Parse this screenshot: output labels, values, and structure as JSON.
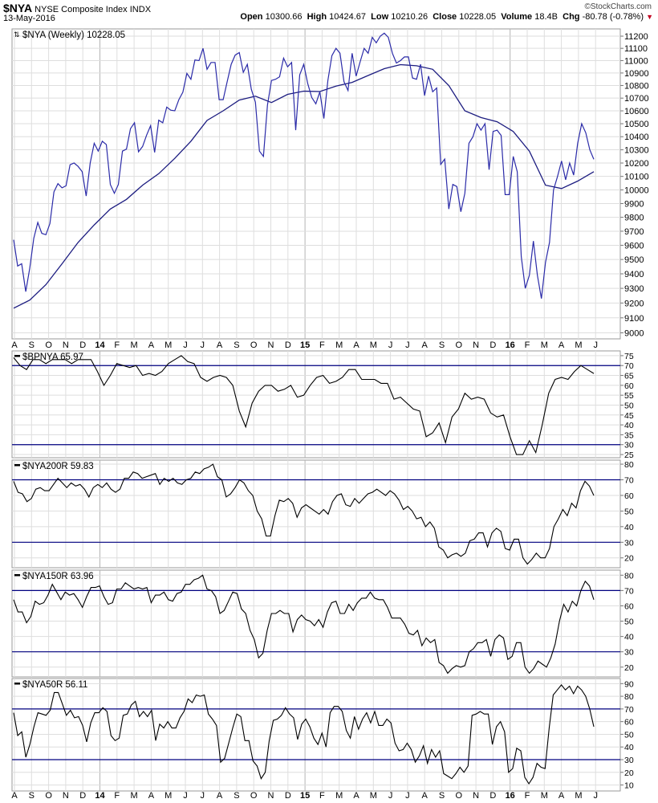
{
  "header": {
    "symbol": "$NYA",
    "name": "NYSE Composite Index",
    "type": "INDX",
    "copyright": "©StockCharts.com",
    "date": "13-May-2016",
    "quote": [
      {
        "label": "Open",
        "value": "10300.66"
      },
      {
        "label": "High",
        "value": "10424.67"
      },
      {
        "label": "Low",
        "value": "10210.26"
      },
      {
        "label": "Close",
        "value": "10228.05"
      },
      {
        "label": "Volume",
        "value": "18.4B"
      },
      {
        "label": "Chg",
        "value": "-80.78 (-0.78%)"
      }
    ],
    "chg_direction": "down",
    "down_color": "#c00020"
  },
  "x_axis": {
    "labels": [
      "A",
      "S",
      "O",
      "N",
      "D",
      "14",
      "F",
      "M",
      "A",
      "M",
      "J",
      "J",
      "A",
      "S",
      "O",
      "N",
      "D",
      "15",
      "F",
      "M",
      "A",
      "M",
      "J",
      "J",
      "A",
      "S",
      "O",
      "N",
      "D",
      "16",
      "F",
      "M",
      "A",
      "M",
      "J"
    ],
    "year_labels": [
      "14",
      "15",
      "16"
    ]
  },
  "chart_data": [
    {
      "type": "line",
      "legend": "$NYA (Weekly) 10228.05",
      "scale": "log",
      "ylim": [
        8960,
        11260
      ],
      "yticks": [
        9000,
        9100,
        9200,
        9300,
        9400,
        9500,
        9600,
        9700,
        9800,
        9900,
        10000,
        10100,
        10200,
        10300,
        10400,
        10500,
        10600,
        10700,
        10800,
        10900,
        11000,
        11100,
        11200
      ],
      "grid": true,
      "colors": {
        "close": "#2b2ba8",
        "ma": "#1c1c80"
      },
      "series": [
        {
          "key": "close",
          "values": [
            9639,
            9454,
            9470,
            9278,
            9440,
            9650,
            9763,
            9685,
            9675,
            9755,
            9985,
            10046,
            10015,
            10030,
            10187,
            10200,
            10175,
            10135,
            9955,
            10200,
            10350,
            10290,
            10365,
            10340,
            10040,
            9975,
            10040,
            10290,
            10305,
            10462,
            10507,
            10285,
            10325,
            10412,
            10485,
            10280,
            10527,
            10507,
            10629,
            10605,
            10600,
            10688,
            10747,
            10897,
            10850,
            11005,
            11000,
            11100,
            10930,
            10985,
            10985,
            10688,
            10688,
            10830,
            10970,
            11045,
            11065,
            10905,
            10970,
            10770,
            10668,
            10290,
            10250,
            10645,
            10840,
            10850,
            10870,
            11020,
            10950,
            10985,
            10450,
            10885,
            10970,
            10815,
            10705,
            10655,
            10750,
            10540,
            10840,
            11040,
            11100,
            11060,
            10830,
            10760,
            11060,
            10875,
            10990,
            11100,
            11060,
            11190,
            11145,
            11200,
            11225,
            11190,
            11060,
            10980,
            11000,
            11030,
            11030,
            10860,
            10850,
            10970,
            10720,
            10875,
            10750,
            10780,
            10190,
            10230,
            9860,
            10040,
            10025,
            9840,
            9975,
            10350,
            10400,
            10500,
            10450,
            10500,
            10150,
            10440,
            10450,
            10410,
            9965,
            9965,
            10250,
            10135,
            9520,
            9300,
            9390,
            9630,
            9390,
            9230,
            9480,
            9620,
            10000,
            10100,
            10215,
            10075,
            10200,
            10110,
            10350,
            10500,
            10430,
            10300,
            10228
          ]
        },
        {
          "key": "ma",
          "values": [
            9165,
            9220,
            9325,
            9470,
            9620,
            9745,
            9860,
            9930,
            10035,
            10120,
            10235,
            10365,
            10525,
            10600,
            10685,
            10715,
            10665,
            10730,
            10755,
            10752,
            10795,
            10825,
            10880,
            10935,
            10967,
            10958,
            10930,
            10800,
            10600,
            10548,
            10515,
            10440,
            10290,
            10035,
            10010,
            10065,
            10135
          ]
        }
      ]
    },
    {
      "type": "line",
      "legend": "$BPNYA 65.97",
      "ylim": [
        23.4,
        77.4
      ],
      "yticks": [
        25,
        30,
        35,
        40,
        45,
        50,
        55,
        60,
        65,
        70,
        75
      ],
      "ref_lines": [
        70,
        30
      ],
      "grid": true,
      "values": [
        74,
        70,
        68,
        73,
        73,
        71,
        73,
        73,
        73,
        71,
        73,
        73,
        73,
        67,
        60,
        65,
        71,
        70,
        69,
        70,
        65,
        66,
        65,
        67,
        71,
        73,
        75,
        72,
        71,
        64,
        62,
        64,
        65,
        64,
        60,
        47,
        39,
        51,
        57,
        60,
        60,
        57,
        58,
        60,
        54,
        55,
        60,
        64,
        65,
        61,
        62,
        64,
        68,
        68,
        63,
        63,
        63,
        61,
        61,
        53,
        54,
        51,
        48,
        47,
        34,
        36,
        41,
        31,
        44,
        48,
        56,
        53,
        54,
        53,
        46,
        44,
        45,
        34,
        25,
        25,
        32,
        26,
        40,
        56,
        63,
        64,
        63,
        67,
        70,
        68,
        66
      ]
    },
    {
      "type": "line",
      "legend": "$NYA200R 59.83",
      "ylim": [
        13.7,
        82.6
      ],
      "yticks": [
        20,
        30,
        40,
        50,
        60,
        70,
        80
      ],
      "ref_lines": [
        70,
        30
      ],
      "grid": true,
      "values": [
        69,
        62,
        61,
        56,
        58,
        64,
        65,
        63,
        63,
        67,
        71,
        68,
        65,
        68,
        66,
        67,
        64,
        59,
        65,
        67,
        65,
        68,
        64,
        62,
        64,
        71,
        71,
        75,
        74,
        71,
        72,
        73,
        74,
        67,
        71,
        69,
        71,
        68,
        67,
        70,
        71,
        75,
        74,
        77,
        78,
        80,
        72,
        70,
        59,
        61,
        65,
        70,
        68,
        63,
        60,
        50,
        45,
        34,
        34,
        47,
        57,
        56,
        58,
        55,
        46,
        52,
        54,
        52,
        50,
        48,
        51,
        48,
        56,
        60,
        61,
        54,
        53,
        58,
        55,
        58,
        61,
        62,
        64,
        62,
        60,
        63,
        61,
        57,
        51,
        53,
        50,
        45,
        46,
        40,
        43,
        39,
        27,
        25,
        20,
        22,
        23,
        21,
        23,
        31,
        32,
        36,
        36,
        27,
        36,
        39,
        37,
        26,
        25,
        32,
        32,
        20,
        16,
        19,
        23,
        20,
        20,
        26,
        40,
        45,
        51,
        47,
        55,
        52,
        63,
        69,
        66,
        60
      ]
    },
    {
      "type": "line",
      "legend": "$NYA150R 63.96",
      "ylim": [
        13.6,
        83.3
      ],
      "yticks": [
        20,
        30,
        40,
        50,
        60,
        70,
        80
      ],
      "ref_lines": [
        70,
        30
      ],
      "grid": true,
      "values": [
        64,
        56,
        56,
        49,
        53,
        63,
        61,
        62,
        67,
        74,
        69,
        64,
        69,
        67,
        68,
        64,
        59,
        66,
        72,
        72,
        73,
        66,
        61,
        62,
        71,
        71,
        75,
        73,
        71,
        72,
        71,
        72,
        62,
        67,
        67,
        69,
        64,
        63,
        68,
        69,
        74,
        74,
        77,
        78,
        80,
        71,
        70,
        66,
        55,
        57,
        63,
        69,
        68,
        58,
        55,
        44,
        38,
        26,
        29,
        44,
        55,
        55,
        57,
        55,
        55,
        43,
        51,
        54,
        51,
        50,
        47,
        51,
        46,
        56,
        62,
        63,
        55,
        55,
        61,
        57,
        62,
        65,
        65,
        69,
        65,
        64,
        64,
        59,
        52,
        52,
        52,
        48,
        42,
        41,
        44,
        34,
        39,
        36,
        38,
        23,
        21,
        16,
        19,
        21,
        20,
        21,
        30,
        32,
        36,
        36,
        38,
        27,
        38,
        41,
        39,
        25,
        27,
        36,
        36,
        20,
        16,
        19,
        24,
        22,
        20,
        26,
        35,
        50,
        61,
        56,
        63,
        60,
        70,
        76,
        73,
        64
      ]
    },
    {
      "type": "line",
      "legend": "$NYA50R 56.11",
      "ylim": [
        5.3,
        94
      ],
      "yticks": [
        10,
        20,
        30,
        40,
        50,
        60,
        70,
        80,
        90
      ],
      "ref_lines": [
        70,
        30
      ],
      "grid": true,
      "values": [
        67,
        49,
        52,
        32,
        42,
        56,
        67,
        66,
        65,
        69,
        83,
        83,
        74,
        65,
        69,
        63,
        64,
        57,
        44,
        59,
        67,
        67,
        71,
        68,
        49,
        45,
        47,
        65,
        66,
        73,
        76,
        64,
        68,
        64,
        69,
        45,
        58,
        55,
        60,
        55,
        55,
        63,
        68,
        78,
        75,
        81,
        80,
        81,
        66,
        62,
        57,
        28,
        31,
        43,
        55,
        66,
        64,
        45,
        45,
        29,
        25,
        15,
        20,
        45,
        61,
        62,
        65,
        71,
        66,
        63,
        46,
        58,
        62,
        56,
        47,
        42,
        51,
        40,
        67,
        72,
        72,
        68,
        53,
        47,
        64,
        54,
        62,
        67,
        59,
        68,
        57,
        57,
        62,
        59,
        43,
        37,
        38,
        43,
        38,
        28,
        33,
        41,
        27,
        38,
        32,
        37,
        19,
        17,
        15,
        19,
        24,
        20,
        25,
        65,
        66,
        68,
        66,
        66,
        42,
        56,
        60,
        52,
        20,
        23,
        39,
        37,
        16,
        11,
        16,
        27,
        24,
        23,
        55,
        81,
        85,
        89,
        85,
        88,
        82,
        88,
        85,
        80,
        70,
        56
      ]
    }
  ]
}
